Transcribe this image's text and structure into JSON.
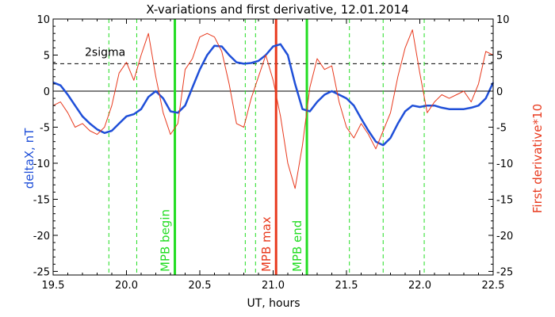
{
  "chart_data": {
    "type": "line",
    "title": "X-variations and first derivative, 12.01.2014",
    "xlabel": "UT, hours",
    "ylabel_left": "deltaX, nT",
    "ylabel_right": "First derivative*10",
    "xlim": [
      19.5,
      22.5
    ],
    "ylim": [
      -25.5,
      10
    ],
    "x_ticks": [
      "19.5",
      "20.0",
      "20.5",
      "21.0",
      "21.5",
      "22.0",
      "22.5"
    ],
    "x_tick_values": [
      19.5,
      20.0,
      20.5,
      21.0,
      21.5,
      22.0,
      22.5
    ],
    "y_ticks": [
      "10",
      "5",
      "0",
      "-5",
      "-10",
      "-15",
      "-20",
      "-25"
    ],
    "y_tick_values": [
      10,
      5,
      0,
      -5,
      -10,
      -15,
      -20,
      -25
    ],
    "sigma_level": 3.8,
    "sigma_label": "2sigma",
    "colors": {
      "deltaX": "#1f4fd8",
      "derivative": "#e8391d",
      "mpb_green": "#22dd22",
      "mpb_red": "#e8391d",
      "dashed_green": "#22dd22"
    },
    "series": [
      {
        "x": [
          19.5,
          19.55,
          19.6,
          19.65,
          19.7,
          19.75,
          19.8,
          19.85,
          19.9,
          19.95,
          20.0,
          20.05,
          20.1,
          20.15,
          20.2,
          20.25,
          20.3,
          20.35,
          20.4,
          20.45,
          20.5,
          20.55,
          20.6,
          20.65,
          20.7,
          20.75,
          20.8,
          20.85,
          20.9,
          20.95,
          21.0,
          21.05,
          21.1,
          21.15,
          21.2,
          21.25,
          21.3,
          21.35,
          21.4,
          21.45,
          21.5,
          21.55,
          21.6,
          21.65,
          21.7,
          21.75,
          21.8,
          21.85,
          21.9,
          21.95,
          22.0,
          22.05,
          22.1,
          22.15,
          22.2,
          22.25,
          22.3,
          22.35,
          22.4,
          22.45,
          22.5
        ],
        "values": [
          1.2,
          0.8,
          -0.5,
          -2.0,
          -3.5,
          -4.5,
          -5.3,
          -5.8,
          -5.5,
          -4.5,
          -3.5,
          -3.2,
          -2.5,
          -0.8,
          0,
          -1.0,
          -2.8,
          -3.0,
          -2.0,
          0.5,
          3.0,
          5.0,
          6.3,
          6.2,
          5.0,
          4.0,
          3.8,
          3.9,
          4.2,
          5.0,
          6.2,
          6.5,
          5.0,
          1.0,
          -2.5,
          -2.8,
          -1.5,
          -0.5,
          0,
          -0.5,
          -1.0,
          -2.0,
          -3.8,
          -5.5,
          -7.0,
          -7.5,
          -6.5,
          -4.5,
          -2.8,
          -2.0,
          -2.2,
          -2.0,
          -2.0,
          -2.3,
          -2.5,
          -2.5,
          -2.5,
          -2.3,
          -2.0,
          -1.0,
          1.2
        ]
      },
      {
        "x": [
          19.5,
          19.55,
          19.6,
          19.65,
          19.7,
          19.75,
          19.8,
          19.85,
          19.9,
          19.95,
          20.0,
          20.05,
          20.1,
          20.15,
          20.2,
          20.25,
          20.3,
          20.35,
          20.4,
          20.45,
          20.5,
          20.55,
          20.6,
          20.65,
          20.7,
          20.75,
          20.8,
          20.85,
          20.9,
          20.95,
          21.0,
          21.05,
          21.1,
          21.15,
          21.2,
          21.25,
          21.3,
          21.35,
          21.4,
          21.45,
          21.5,
          21.55,
          21.6,
          21.65,
          21.7,
          21.75,
          21.8,
          21.85,
          21.9,
          21.95,
          22.0,
          22.05,
          22.1,
          22.15,
          22.2,
          22.25,
          22.3,
          22.35,
          22.4,
          22.45,
          22.5
        ],
        "values": [
          -2.0,
          -1.5,
          -3.0,
          -5.0,
          -4.5,
          -5.5,
          -6.0,
          -5.0,
          -2.0,
          2.5,
          4.0,
          1.5,
          5.0,
          8.0,
          2.0,
          -3.0,
          -6.0,
          -4.5,
          3.0,
          4.5,
          7.5,
          8.0,
          7.5,
          5.5,
          1.0,
          -4.5,
          -5.0,
          -1.0,
          2.0,
          5.0,
          1.5,
          -3.5,
          -10.0,
          -13.5,
          -7.5,
          0.5,
          4.5,
          3.0,
          3.5,
          -1.5,
          -5.0,
          -6.5,
          -4.5,
          -6.0,
          -8.0,
          -5.5,
          -3.0,
          2.0,
          6.0,
          8.5,
          2.5,
          -3.0,
          -1.5,
          -0.5,
          -1.0,
          -0.5,
          0,
          -1.5,
          1.0,
          5.5,
          5.0
        ]
      }
    ],
    "vertical_lines": [
      {
        "x": 20.33,
        "label": "MPB begin",
        "style": "solid",
        "color": "green"
      },
      {
        "x": 21.02,
        "label": "MPB max",
        "style": "solid",
        "color": "red"
      },
      {
        "x": 21.23,
        "label": "MPB end",
        "style": "solid",
        "color": "green"
      },
      {
        "x": 19.88,
        "label": "",
        "style": "dashed",
        "color": "green"
      },
      {
        "x": 20.07,
        "label": "",
        "style": "dashed",
        "color": "green"
      },
      {
        "x": 20.81,
        "label": "",
        "style": "dashed",
        "color": "green"
      },
      {
        "x": 20.88,
        "label": "",
        "style": "dashed",
        "color": "green"
      },
      {
        "x": 21.52,
        "label": "",
        "style": "dashed",
        "color": "green"
      },
      {
        "x": 21.75,
        "label": "",
        "style": "dashed",
        "color": "green"
      },
      {
        "x": 22.03,
        "label": "",
        "style": "dashed",
        "color": "green"
      }
    ]
  }
}
